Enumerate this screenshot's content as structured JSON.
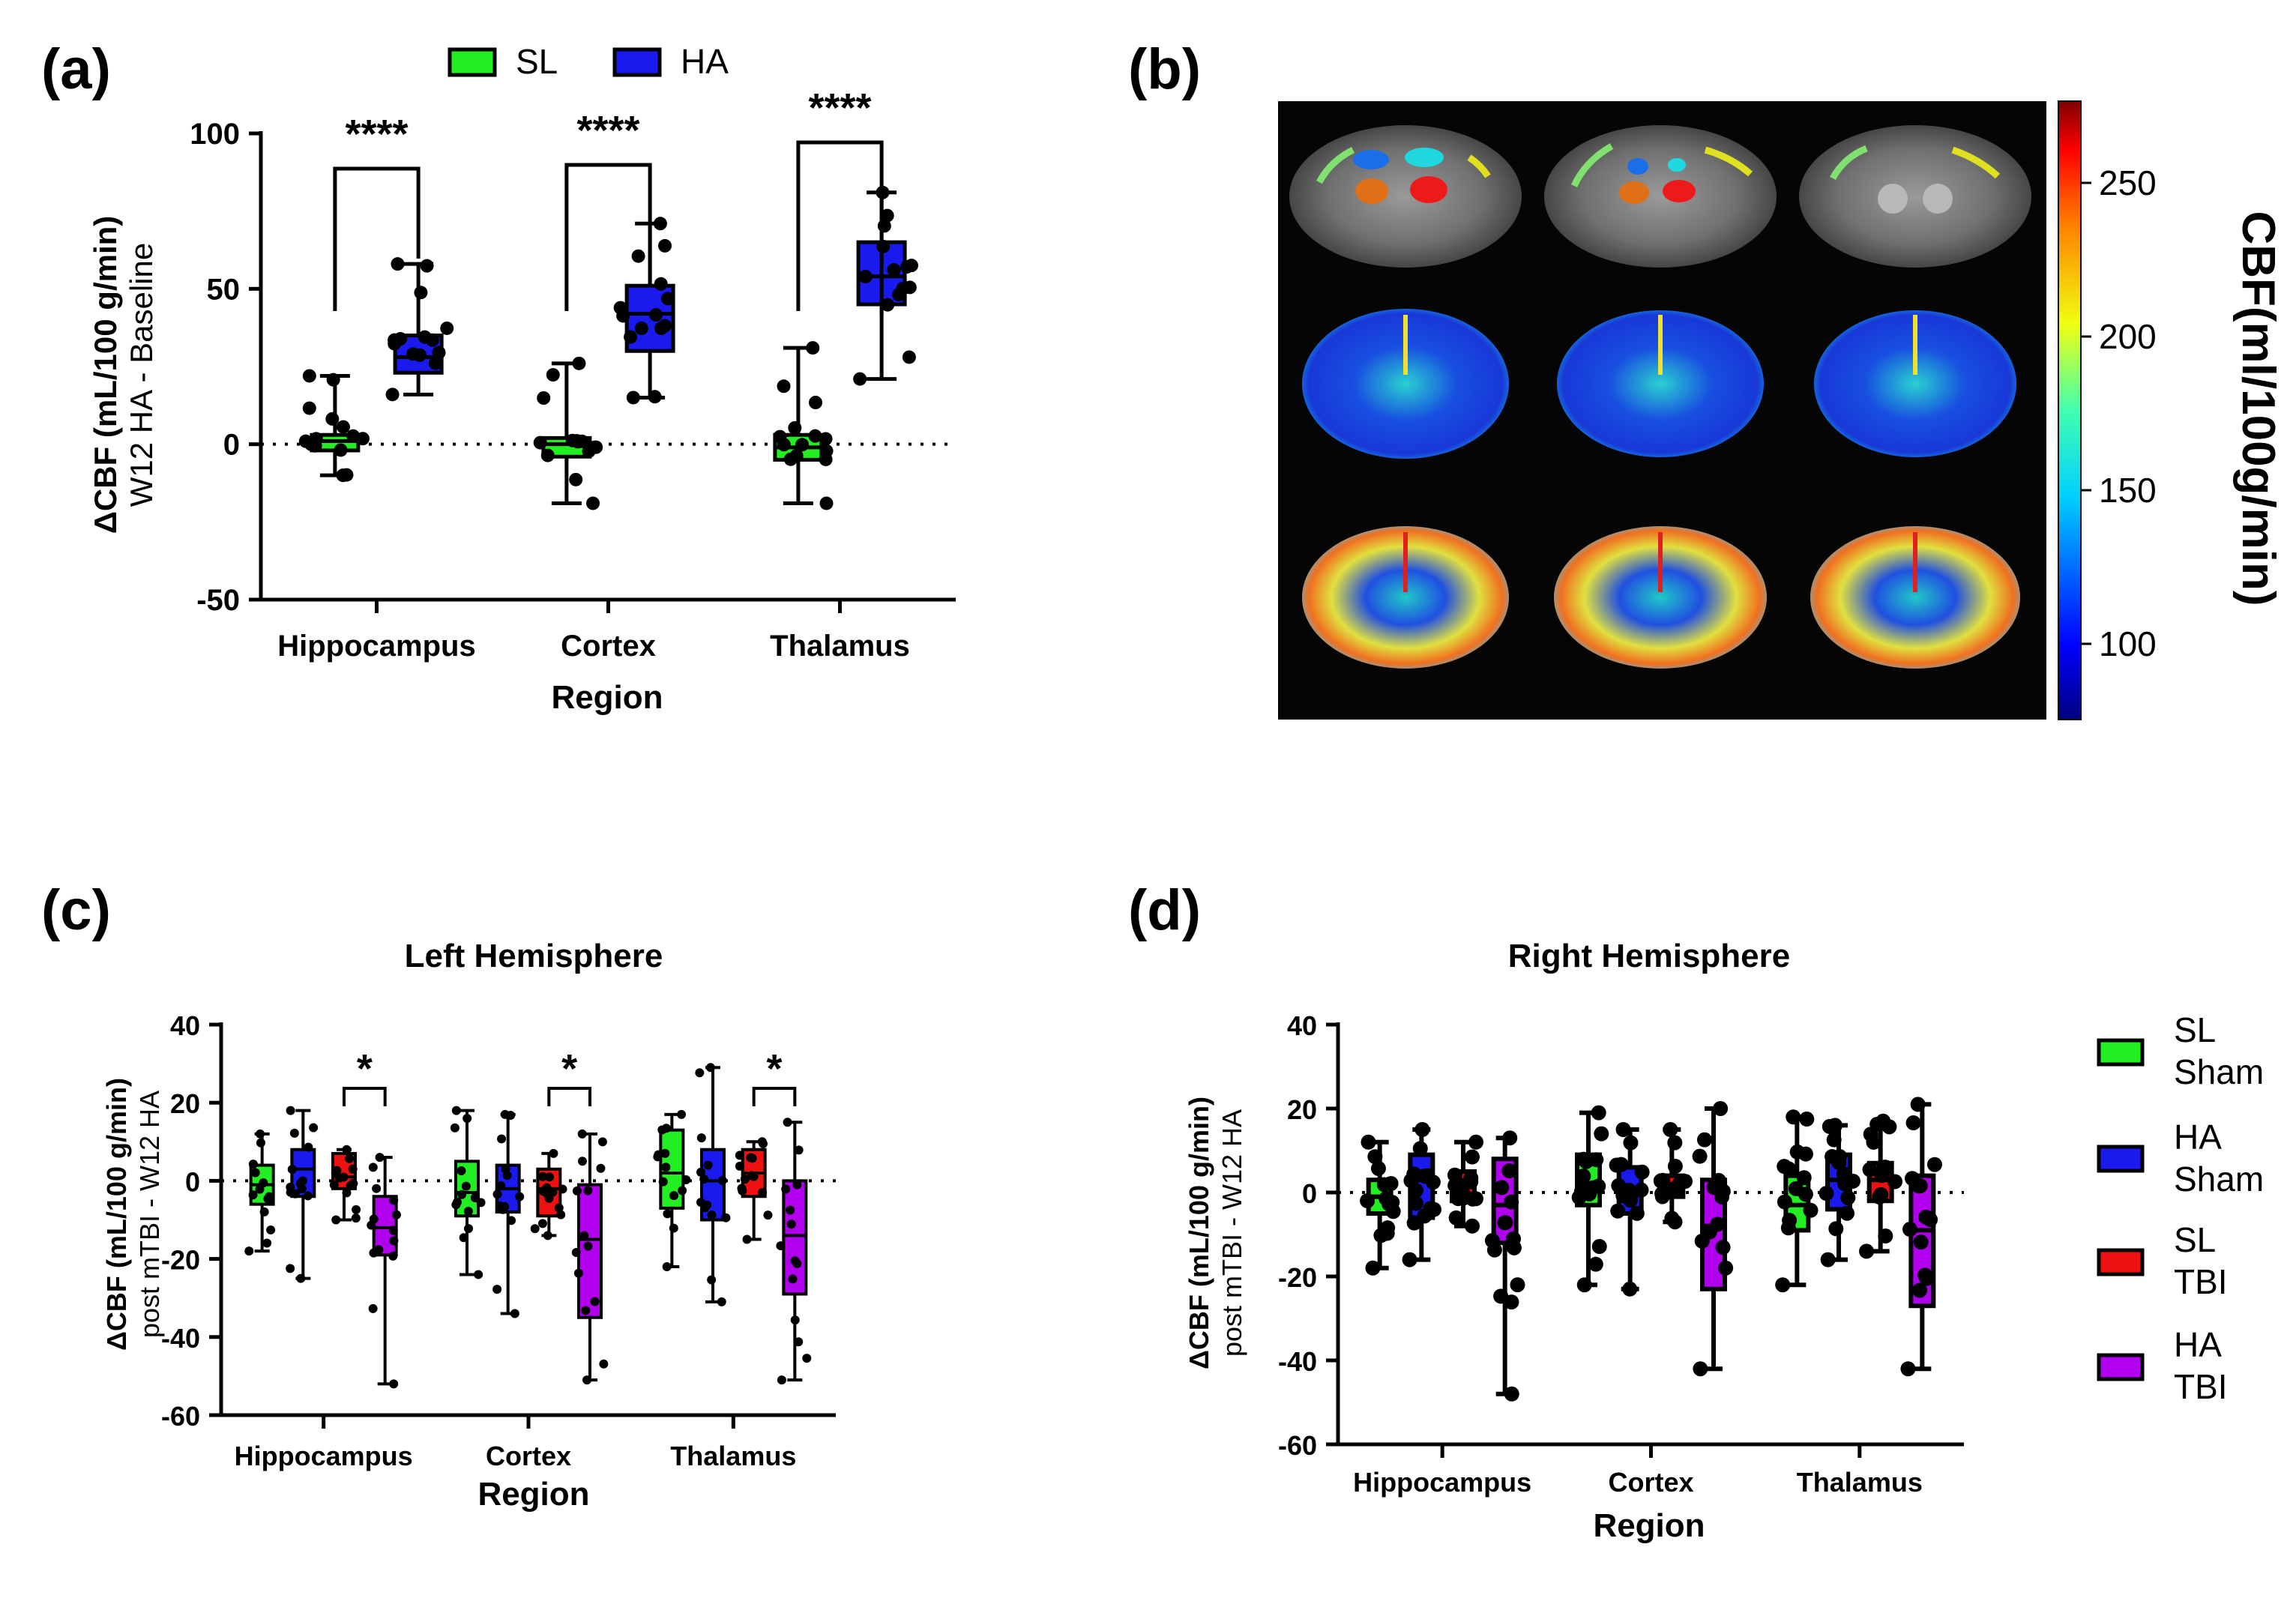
{
  "panels": {
    "a": {
      "label": "(a)",
      "legend": [
        {
          "name": "SL",
          "color": "#22ee22"
        },
        {
          "name": "HA",
          "color": "#1a1aee"
        }
      ],
      "ylabel_bold": "ΔCBF (mL/100 g/min)",
      "ylabel_sub": "W12 HA - Baseline",
      "xlabel": "Region"
    },
    "b": {
      "label": "(b)",
      "colorbar_title": "CBF(ml/100g/min)",
      "colorbar_ticks": [
        "250",
        "200",
        "150",
        "100"
      ]
    },
    "c": {
      "label": "(c)",
      "title": "Left Hemisphere",
      "ylabel_bold": "ΔCBF (mL/100 g/min)",
      "ylabel_sub": "post mTBI - W12 HA",
      "xlabel": "Region"
    },
    "d": {
      "label": "(d)",
      "title": "Right  Hemisphere",
      "ylabel_bold": "ΔCBF (mL/100 g/min)",
      "ylabel_sub": "post mTBI - W12 HA",
      "xlabel": "Region",
      "legend": [
        {
          "line1": "SL",
          "line2": "Sham",
          "color": "#22ee22"
        },
        {
          "line1": "HA",
          "line2": "Sham",
          "color": "#1a1aee"
        },
        {
          "line1": "SL",
          "line2": "TBI",
          "color": "#ee1111"
        },
        {
          "line1": "HA",
          "line2": "TBI",
          "color": "#b000ee"
        }
      ]
    }
  },
  "chart_data": [
    {
      "id": "a",
      "type": "box",
      "title": "",
      "xlabel": "Region",
      "ylabel": "ΔCBF (mL/100 g/min) W12 HA - Baseline",
      "ylim": [
        -50,
        100
      ],
      "yticks": [
        "100",
        "50",
        "0",
        "-50"
      ],
      "categories": [
        "Hippocampus",
        "Cortex",
        "Thalamus"
      ],
      "significance": [
        "****",
        "****",
        "****"
      ],
      "series": [
        {
          "name": "SL",
          "color": "#22ee22",
          "boxes": [
            {
              "min": -10,
              "q1": -2,
              "median": 1,
              "q3": 3,
              "max": 22
            },
            {
              "min": -19,
              "q1": -4,
              "median": 0,
              "q3": 2,
              "max": 26
            },
            {
              "min": -19,
              "q1": -5,
              "median": -1,
              "q3": 3,
              "max": 31
            }
          ]
        },
        {
          "name": "HA",
          "color": "#1a1aee",
          "boxes": [
            {
              "min": 16,
              "q1": 23,
              "median": 28,
              "q3": 35,
              "max": 58
            },
            {
              "min": 15,
              "q1": 30,
              "median": 42,
              "q3": 51,
              "max": 71
            },
            {
              "min": 21,
              "q1": 45,
              "median": 54,
              "q3": 65,
              "max": 81
            }
          ]
        }
      ]
    },
    {
      "id": "c",
      "type": "box",
      "title": "Left Hemisphere",
      "xlabel": "Region",
      "ylabel": "ΔCBF (mL/100 g/min) post mTBI - W12 HA",
      "ylim": [
        -60,
        40
      ],
      "yticks": [
        "40",
        "20",
        "0",
        "-20",
        "-40",
        "-60"
      ],
      "categories": [
        "Hippocampus",
        "Cortex",
        "Thalamus"
      ],
      "significance": [
        "*",
        "*",
        "*"
      ],
      "series": [
        {
          "name": "SL Sham",
          "color": "#22ee22",
          "boxes": [
            {
              "min": -18,
              "q1": -6,
              "median": -1,
              "q3": 4,
              "max": 12
            },
            {
              "min": -24,
              "q1": -9,
              "median": -3,
              "q3": 5,
              "max": 18
            },
            {
              "min": -22,
              "q1": -7,
              "median": 2,
              "q3": 13,
              "max": 17
            }
          ]
        },
        {
          "name": "HA Sham",
          "color": "#1a1aee",
          "boxes": [
            {
              "min": -25,
              "q1": -4,
              "median": 3,
              "q3": 8,
              "max": 18
            },
            {
              "min": -34,
              "q1": -8,
              "median": -2,
              "q3": 4,
              "max": 17
            },
            {
              "min": -31,
              "q1": -10,
              "median": 0,
              "q3": 8,
              "max": 29
            }
          ]
        },
        {
          "name": "SL TBI",
          "color": "#ee1111",
          "boxes": [
            {
              "min": -10,
              "q1": -2,
              "median": 1,
              "q3": 7,
              "max": 8
            },
            {
              "min": -14,
              "q1": -9,
              "median": -2,
              "q3": 3,
              "max": 7
            },
            {
              "min": -15,
              "q1": -4,
              "median": 2,
              "q3": 8,
              "max": 10
            }
          ]
        },
        {
          "name": "HA TBI",
          "color": "#b000ee",
          "boxes": [
            {
              "min": -52,
              "q1": -19,
              "median": -12,
              "q3": -4,
              "max": 6
            },
            {
              "min": -51,
              "q1": -35,
              "median": -15,
              "q3": -1,
              "max": 12
            },
            {
              "min": -51,
              "q1": -29,
              "median": -14,
              "q3": 0,
              "max": 15
            }
          ]
        }
      ]
    },
    {
      "id": "d",
      "type": "box",
      "title": "Right  Hemisphere",
      "xlabel": "Region",
      "ylabel": "ΔCBF (mL/100 g/min) post mTBI - W12 HA",
      "ylim": [
        -60,
        40
      ],
      "yticks": [
        "40",
        "20",
        "0",
        "-20",
        "-40",
        "-60"
      ],
      "categories": [
        "Hippocampus",
        "Cortex",
        "Thalamus"
      ],
      "series": [
        {
          "name": "SL Sham",
          "color": "#22ee22",
          "boxes": [
            {
              "min": -18,
              "q1": -5,
              "median": -1,
              "q3": 3,
              "max": 12
            },
            {
              "min": -22,
              "q1": -3,
              "median": 2,
              "q3": 9,
              "max": 19
            },
            {
              "min": -22,
              "q1": -9,
              "median": -3,
              "q3": 4,
              "max": 18
            }
          ]
        },
        {
          "name": "HA Sham",
          "color": "#1a1aee",
          "boxes": [
            {
              "min": -16,
              "q1": -6,
              "median": 3,
              "q3": 9,
              "max": 15
            },
            {
              "min": -23,
              "q1": -5,
              "median": 0,
              "q3": 6,
              "max": 15
            },
            {
              "min": -16,
              "q1": -4,
              "median": 3,
              "q3": 9,
              "max": 16
            }
          ]
        },
        {
          "name": "SL TBI",
          "color": "#ee1111",
          "boxes": [
            {
              "min": -8,
              "q1": -2,
              "median": 2,
              "q3": 5,
              "max": 12
            },
            {
              "min": -7,
              "q1": -1,
              "median": 2,
              "q3": 4,
              "max": 15
            },
            {
              "min": -14,
              "q1": -2,
              "median": 3,
              "q3": 7,
              "max": 17
            }
          ]
        },
        {
          "name": "HA TBI",
          "color": "#b000ee",
          "boxes": [
            {
              "min": -48,
              "q1": -12,
              "median": -3,
              "q3": 8,
              "max": 13
            },
            {
              "min": -42,
              "q1": -23,
              "median": -8,
              "q3": 3,
              "max": 20
            },
            {
              "min": -42,
              "q1": -27,
              "median": -9,
              "q3": 4,
              "max": 21
            }
          ]
        }
      ]
    }
  ]
}
